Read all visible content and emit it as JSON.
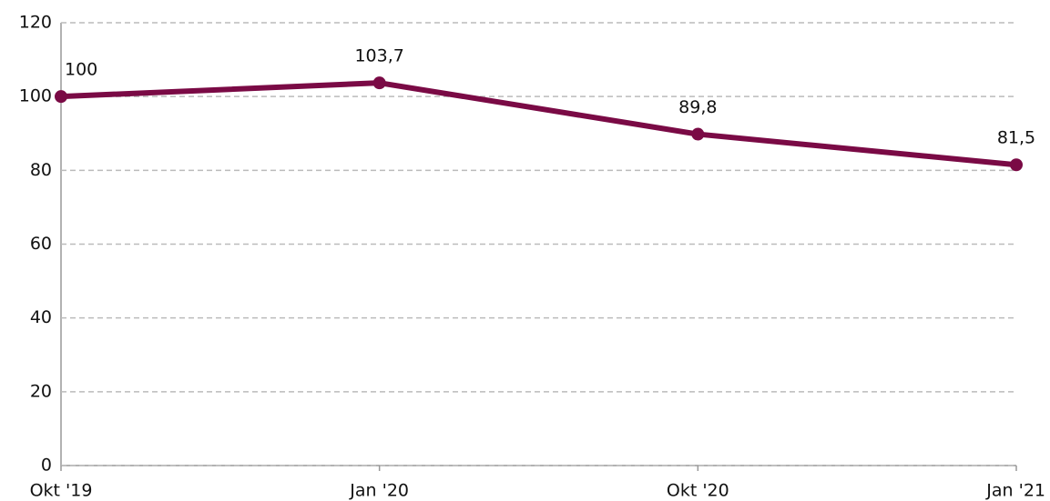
{
  "chart_data": {
    "type": "line",
    "categories": [
      "Okt '19",
      "Jan '20",
      "Okt '20",
      "Jan '21"
    ],
    "values": [
      100,
      103.7,
      89.8,
      81.5
    ],
    "value_labels": [
      "100",
      "103,7",
      "89,8",
      "81,5"
    ],
    "color": "#7a0a45",
    "ylim": [
      0,
      120
    ],
    "yticks": [
      0,
      20,
      40,
      60,
      80,
      100,
      120
    ],
    "grid": true
  }
}
